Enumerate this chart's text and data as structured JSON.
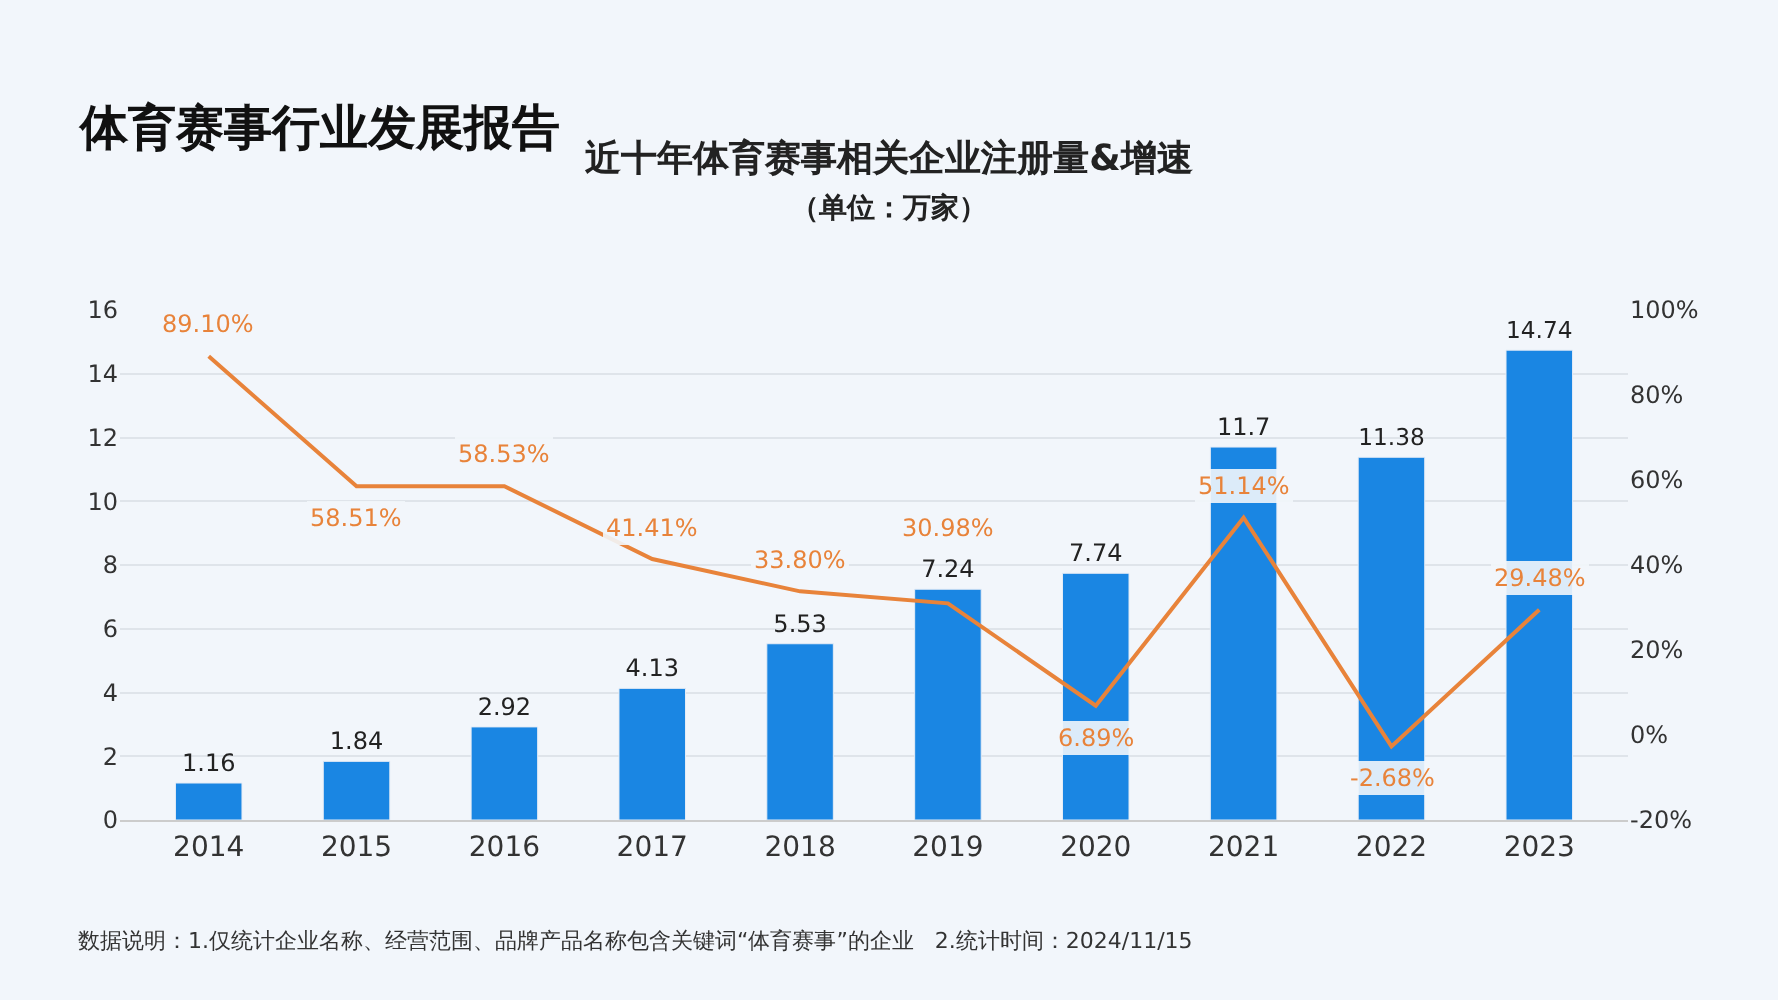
{
  "chart_data": {
    "type": "bar",
    "title": "近十年体育赛事相关企业注册量&增速",
    "subtitle": "（单位：万家）",
    "annotations": [
      "体育赛事行业发展报告",
      "数据说明：1.仅统计企业名称、经营范围、品牌产品名称包含关键词“体育赛事”的企业   2.统计时间：2024/11/15"
    ],
    "categories": [
      "2014",
      "2015",
      "2016",
      "2017",
      "2018",
      "2019",
      "2020",
      "2021",
      "2022",
      "2023"
    ],
    "series": [
      {
        "color": "#1a86e3",
        "values": [
          1.16,
          1.84,
          2.92,
          4.13,
          5.53,
          7.24,
          7.74,
          11.7,
          11.38,
          14.74
        ],
        "value_labels": [
          "1.16",
          "1.84",
          "2.92",
          "4.13",
          "5.53",
          "7.24",
          "7.74",
          "11.7",
          "11.38",
          "14.74"
        ]
      },
      {
        "type": "line",
        "axis": "y2",
        "color": "#e8833a",
        "values": [
          89.1,
          58.51,
          58.53,
          41.41,
          33.8,
          30.98,
          6.89,
          51.14,
          -2.68,
          29.48
        ],
        "value_labels": [
          "89.10%",
          "58.51%",
          "58.53%",
          "41.41%",
          "33.80%",
          "30.98%",
          "6.89%",
          "51.14%",
          "-2.68%",
          "29.48%"
        ]
      }
    ],
    "ylim": [
      0,
      16
    ],
    "yticks": [
      0,
      2,
      4,
      6,
      8,
      10,
      12,
      14,
      16
    ],
    "y2lim": [
      -20,
      100
    ],
    "y2ticks": [
      {
        "value": -20,
        "label": "-20%"
      },
      {
        "value": 0,
        "label": "0%"
      },
      {
        "value": 20,
        "label": "20%"
      },
      {
        "value": 40,
        "label": "40%"
      },
      {
        "value": 60,
        "label": "60%"
      },
      {
        "value": 80,
        "label": "80%"
      },
      {
        "value": 100,
        "label": "100%"
      }
    ],
    "grid": "y",
    "marker": "none",
    "line_style": "solid",
    "legend": false
  }
}
